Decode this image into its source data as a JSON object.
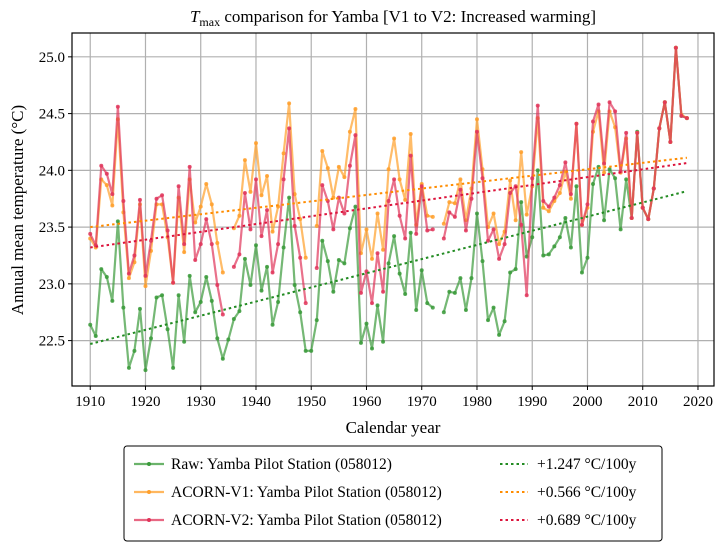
{
  "chart_data": {
    "type": "line",
    "title": {
      "var": "T",
      "sub": "max",
      "rest": " comparison for Yamba   [V1 to V2: Increased warming]"
    },
    "xlabel": "Calendar year",
    "ylabel": "Annual mean temperature (°C)",
    "xlim": [
      1906.7,
      2022.9
    ],
    "ylim": [
      22.1,
      25.21
    ],
    "xticks": [
      1910,
      1920,
      1930,
      1940,
      1950,
      1960,
      1970,
      1980,
      1990,
      2000,
      2010,
      2020
    ],
    "yticks": [
      "22.5",
      "23.0",
      "23.5",
      "24.0",
      "24.5",
      "25.0"
    ],
    "grid": true,
    "legend_placement": "below",
    "x_start": 1910,
    "series": [
      {
        "name": "Raw: Yamba Pilot Station (058012)",
        "color": "#3a9a3a",
        "values": [
          22.64,
          22.54,
          23.13,
          23.06,
          22.85,
          23.55,
          22.79,
          22.26,
          22.41,
          22.78,
          22.24,
          22.52,
          22.88,
          22.9,
          22.6,
          22.26,
          22.9,
          22.49,
          23.07,
          22.75,
          22.84,
          23.06,
          22.85,
          22.52,
          22.34,
          22.51,
          22.69,
          22.76,
          23.22,
          22.99,
          23.34,
          22.94,
          23.15,
          22.64,
          22.84,
          23.32,
          23.76,
          22.99,
          22.75,
          22.41,
          22.41,
          22.68,
          23.38,
          23.2,
          22.93,
          23.21,
          23.18,
          23.49,
          23.68,
          22.48,
          22.65,
          22.43,
          22.81,
          22.49,
          23.18,
          23.42,
          23.09,
          22.91,
          23.45,
          22.77,
          23.12,
          22.83,
          22.79,
          null,
          22.75,
          22.93,
          22.92,
          23.05,
          22.77,
          23.05,
          23.62,
          23.2,
          22.68,
          22.79,
          22.55,
          22.67,
          23.1,
          23.13,
          23.72,
          23.24,
          23.41,
          24.0,
          23.25,
          23.26,
          23.33,
          23.41,
          23.58,
          23.32,
          23.86,
          23.1,
          23.23,
          23.88,
          24.03,
          23.56,
          24.01,
          23.93,
          23.48,
          23.92,
          23.58,
          24.34,
          23.67,
          23.57,
          23.84,
          24.37,
          24.6,
          24.25,
          25.08,
          24.48,
          24.46
        ]
      },
      {
        "name": "ACORN-V1: Yamba Pilot Station (058012)",
        "color": "#ff9f2a",
        "values": [
          23.4,
          23.32,
          23.92,
          23.87,
          23.69,
          24.45,
          23.63,
          23.05,
          23.19,
          23.7,
          22.98,
          23.29,
          23.7,
          23.7,
          23.41,
          23.01,
          23.76,
          23.28,
          23.92,
          23.54,
          23.68,
          23.88,
          23.7,
          23.36,
          23.1,
          null,
          23.49,
          23.6,
          24.09,
          23.81,
          24.24,
          23.78,
          23.95,
          23.46,
          23.68,
          24.15,
          24.59,
          23.79,
          23.57,
          23.23,
          null,
          23.51,
          24.17,
          24.02,
          23.76,
          24.03,
          23.94,
          24.34,
          24.54,
          23.27,
          23.48,
          23.22,
          23.62,
          23.3,
          24.01,
          24.28,
          23.92,
          23.74,
          24.32,
          23.52,
          23.88,
          23.6,
          23.59,
          null,
          23.53,
          23.72,
          23.71,
          23.92,
          23.56,
          23.84,
          24.45,
          24.01,
          23.5,
          23.62,
          23.35,
          23.46,
          23.91,
          23.56,
          24.16,
          23.61,
          23.86,
          24.46,
          23.67,
          23.64,
          23.73,
          23.8,
          23.99,
          23.75,
          24.41,
          23.52,
          23.67,
          24.34,
          24.52,
          23.98,
          24.52,
          24.38,
          23.98,
          24.28,
          23.58,
          24.33,
          23.67,
          23.57,
          23.84,
          24.37,
          24.6,
          24.25,
          25.08,
          24.49,
          24.46
        ]
      },
      {
        "name": "ACORN-V2: Yamba Pilot Station (058012)",
        "color": "#e0355a",
        "values": [
          23.44,
          23.34,
          24.04,
          23.97,
          23.79,
          24.56,
          23.73,
          23.09,
          23.25,
          23.74,
          23.07,
          23.38,
          23.75,
          23.78,
          23.47,
          23.01,
          23.86,
          23.35,
          24.03,
          23.21,
          23.35,
          23.57,
          23.35,
          22.99,
          22.73,
          null,
          23.15,
          23.26,
          23.8,
          23.48,
          23.92,
          23.42,
          23.65,
          23.1,
          23.35,
          23.92,
          24.37,
          23.51,
          23.23,
          22.83,
          null,
          23.14,
          23.87,
          23.73,
          23.48,
          23.76,
          23.62,
          24.04,
          24.31,
          22.92,
          23.11,
          22.83,
          23.27,
          22.93,
          23.73,
          23.92,
          23.6,
          23.4,
          24.13,
          23.44,
          23.86,
          23.47,
          23.48,
          null,
          23.4,
          23.63,
          23.59,
          23.83,
          23.47,
          23.75,
          24.34,
          23.93,
          23.38,
          23.48,
          23.22,
          23.35,
          23.8,
          23.86,
          23.52,
          22.9,
          23.93,
          24.57,
          23.73,
          23.68,
          23.76,
          23.87,
          24.07,
          23.79,
          24.41,
          23.52,
          23.7,
          24.43,
          24.58,
          24.06,
          24.6,
          24.52,
          23.99,
          24.33,
          23.58,
          24.33,
          23.67,
          23.57,
          23.84,
          24.37,
          24.6,
          24.25,
          25.08,
          24.48,
          24.46
        ]
      }
    ],
    "trends": [
      {
        "name": "+1.247 °C/100y",
        "color": "#228b22",
        "slope_per_100y": 1.247,
        "value_1910": 22.47,
        "x_range": [
          1910,
          2018
        ]
      },
      {
        "name": "+0.566 °C/100y",
        "color": "#ff8c00",
        "slope_per_100y": 0.566,
        "value_1910": 23.5,
        "x_range": [
          1910,
          2018
        ]
      },
      {
        "name": "+0.689 °C/100y",
        "color": "#dc143c",
        "slope_per_100y": 0.689,
        "value_1910": 23.32,
        "x_range": [
          1910,
          2018
        ]
      }
    ]
  }
}
